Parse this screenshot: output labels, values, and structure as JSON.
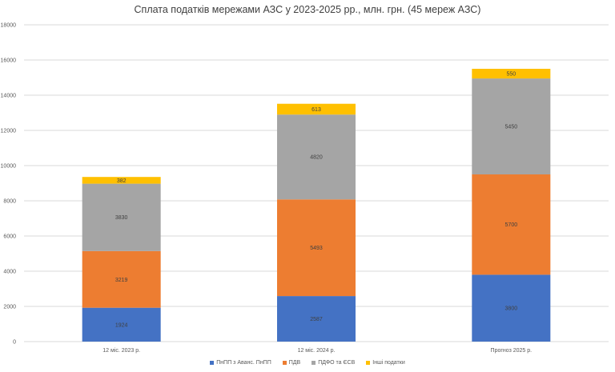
{
  "chart_data": {
    "type": "bar",
    "stacked": true,
    "title": "Сплата податків мережами АЗС у 2023-2025 рр., млн. грн. (45 мереж АЗС)",
    "categories": [
      "12 міс. 2023 р.",
      "12 міс. 2024 р.",
      "Прогноз 2025 р."
    ],
    "series": [
      {
        "name": "ПнПП з Аванс. ПнПП",
        "color": "#4472c4",
        "values": [
          1924,
          2587,
          3800
        ]
      },
      {
        "name": "ПДВ",
        "color": "#ed7d31",
        "values": [
          3219,
          5493,
          5700
        ]
      },
      {
        "name": "ПДФО та ЄСВ",
        "color": "#a5a5a5",
        "values": [
          3830,
          4820,
          5450
        ]
      },
      {
        "name": "Інші податки",
        "color": "#ffc000",
        "values": [
          382,
          613,
          550
        ]
      }
    ],
    "ylim": [
      0,
      18000
    ],
    "yticks": [
      "0",
      "2000",
      "4000",
      "6000",
      "8000",
      "10000",
      "12000",
      "14000",
      "16000",
      "18000"
    ],
    "grid": true,
    "legend_position": "bottom"
  }
}
